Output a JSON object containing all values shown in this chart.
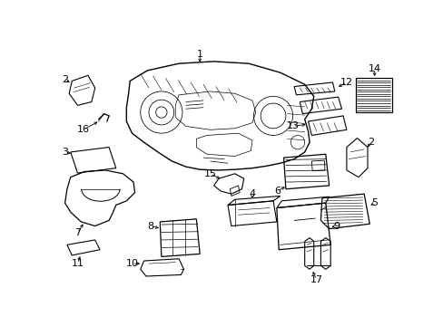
{
  "background_color": "#ffffff",
  "figsize": [
    4.89,
    3.6
  ],
  "dpi": 100,
  "font_size": 8,
  "line_color": "#000000",
  "lw": 0.8
}
